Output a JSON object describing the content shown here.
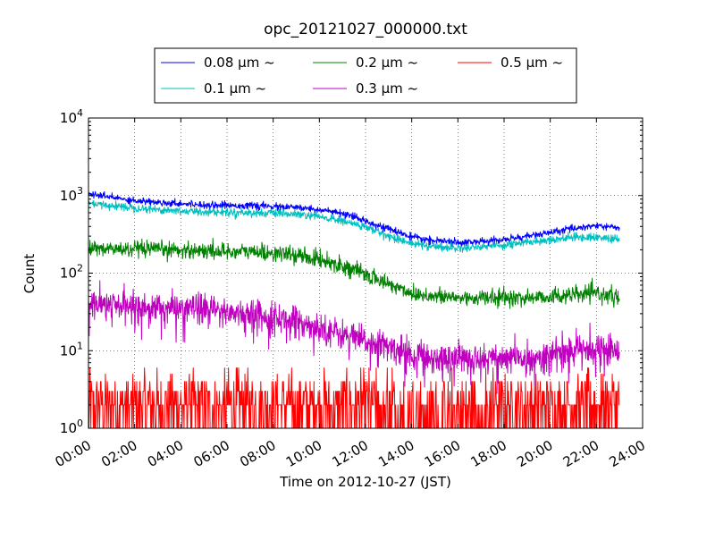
{
  "chart_data": {
    "type": "line",
    "title": "opc_20121027_000000.txt",
    "xlabel": "Time on 2012-10-27 (JST)",
    "ylabel": "Count",
    "x_ticks": [
      "00:00",
      "02:00",
      "04:00",
      "06:00",
      "08:00",
      "10:00",
      "12:00",
      "14:00",
      "16:00",
      "18:00",
      "20:00",
      "22:00",
      "24:00"
    ],
    "xlim_hours": [
      0,
      24
    ],
    "ylim": [
      1,
      10000
    ],
    "y_scale": "log",
    "y_ticks": [
      {
        "base": "10",
        "exp": "0"
      },
      {
        "base": "10",
        "exp": "1"
      },
      {
        "base": "10",
        "exp": "2"
      },
      {
        "base": "10",
        "exp": "3"
      },
      {
        "base": "10",
        "exp": "4"
      }
    ],
    "grid": true,
    "legend_position": "top (above plot)",
    "series": [
      {
        "name": "0.08 μm ~",
        "color": "#0000ff",
        "x": [
          0,
          1,
          2,
          3,
          4,
          5,
          6,
          7,
          8,
          9,
          10,
          11,
          12,
          13,
          14,
          15,
          16,
          17,
          18,
          19,
          20,
          21,
          22,
          23
        ],
        "y": [
          1050,
          950,
          860,
          820,
          790,
          760,
          750,
          740,
          720,
          700,
          660,
          580,
          470,
          370,
          290,
          260,
          250,
          255,
          270,
          300,
          330,
          380,
          410,
          380
        ],
        "noise": 0.05
      },
      {
        "name": "0.1 μm ~",
        "color": "#00bfbf",
        "x": [
          0,
          1,
          2,
          3,
          4,
          5,
          6,
          7,
          8,
          9,
          10,
          11,
          12,
          13,
          14,
          15,
          16,
          17,
          18,
          19,
          20,
          21,
          22,
          23
        ],
        "y": [
          780,
          740,
          700,
          660,
          630,
          620,
          610,
          600,
          590,
          570,
          530,
          470,
          390,
          300,
          240,
          220,
          210,
          220,
          230,
          250,
          270,
          290,
          290,
          270
        ],
        "noise": 0.06
      },
      {
        "name": "0.2 μm ~",
        "color": "#008000",
        "x": [
          0,
          1,
          2,
          3,
          4,
          5,
          6,
          7,
          8,
          9,
          10,
          11,
          12,
          13,
          14,
          15,
          16,
          17,
          18,
          19,
          20,
          21,
          22,
          23
        ],
        "y": [
          210,
          205,
          200,
          200,
          200,
          195,
          190,
          190,
          180,
          170,
          150,
          125,
          95,
          72,
          55,
          50,
          48,
          48,
          48,
          48,
          50,
          52,
          55,
          48
        ],
        "noise": 0.12
      },
      {
        "name": "0.3 μm ~",
        "color": "#bf00bf",
        "x": [
          0,
          1,
          2,
          3,
          4,
          5,
          6,
          7,
          8,
          9,
          10,
          11,
          12,
          13,
          14,
          15,
          16,
          17,
          18,
          19,
          20,
          21,
          22,
          23
        ],
        "y": [
          40,
          38,
          37,
          36,
          35,
          34,
          32,
          30,
          27,
          24,
          20,
          16,
          13,
          11,
          9,
          8,
          8,
          8,
          8,
          8,
          9,
          10,
          11,
          10
        ],
        "noise": 0.22
      },
      {
        "name": "0.5 μm ~",
        "color": "#ff0000",
        "x": [
          0,
          24
        ],
        "y": [
          2,
          2
        ],
        "noise": "discrete counts 1-6"
      }
    ]
  }
}
